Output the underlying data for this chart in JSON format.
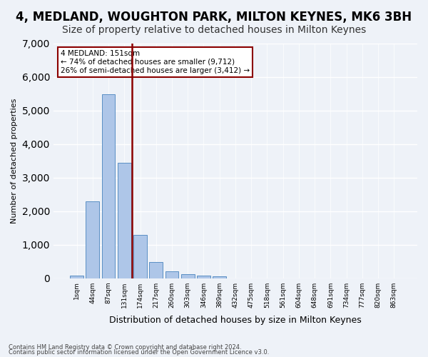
{
  "title": "4, MEDLAND, WOUGHTON PARK, MILTON KEYNES, MK6 3BH",
  "subtitle": "Size of property relative to detached houses in Milton Keynes",
  "xlabel": "Distribution of detached houses by size in Milton Keynes",
  "ylabel": "Number of detached properties",
  "footnote1": "Contains HM Land Registry data © Crown copyright and database right 2024.",
  "footnote2": "Contains public sector information licensed under the Open Government Licence v3.0.",
  "annotation_line1": "4 MEDLAND: 151sqm",
  "annotation_line2": "← 74% of detached houses are smaller (9,712)",
  "annotation_line3": "26% of semi-detached houses are larger (3,412) →",
  "bar_color": "#aec6e8",
  "bar_edge_color": "#5a8fc4",
  "vline_color": "#8b0000",
  "vline_x": 3.5,
  "categories": [
    "1sqm",
    "44sqm",
    "87sqm",
    "131sqm",
    "174sqm",
    "217sqm",
    "260sqm",
    "303sqm",
    "346sqm",
    "389sqm",
    "432sqm",
    "475sqm",
    "518sqm",
    "561sqm",
    "604sqm",
    "648sqm",
    "691sqm",
    "734sqm",
    "777sqm",
    "820sqm",
    "863sqm"
  ],
  "values": [
    75,
    2280,
    5480,
    3430,
    1300,
    490,
    200,
    115,
    80,
    60,
    0,
    0,
    0,
    0,
    0,
    0,
    0,
    0,
    0,
    0,
    0
  ],
  "ylim": [
    0,
    7000
  ],
  "yticks": [
    0,
    1000,
    2000,
    3000,
    4000,
    5000,
    6000,
    7000
  ],
  "background_color": "#eef2f8",
  "plot_bg_color": "#eef2f8",
  "title_fontsize": 12,
  "subtitle_fontsize": 10,
  "annotation_box_color": "white",
  "annotation_box_edge": "#8b0000"
}
